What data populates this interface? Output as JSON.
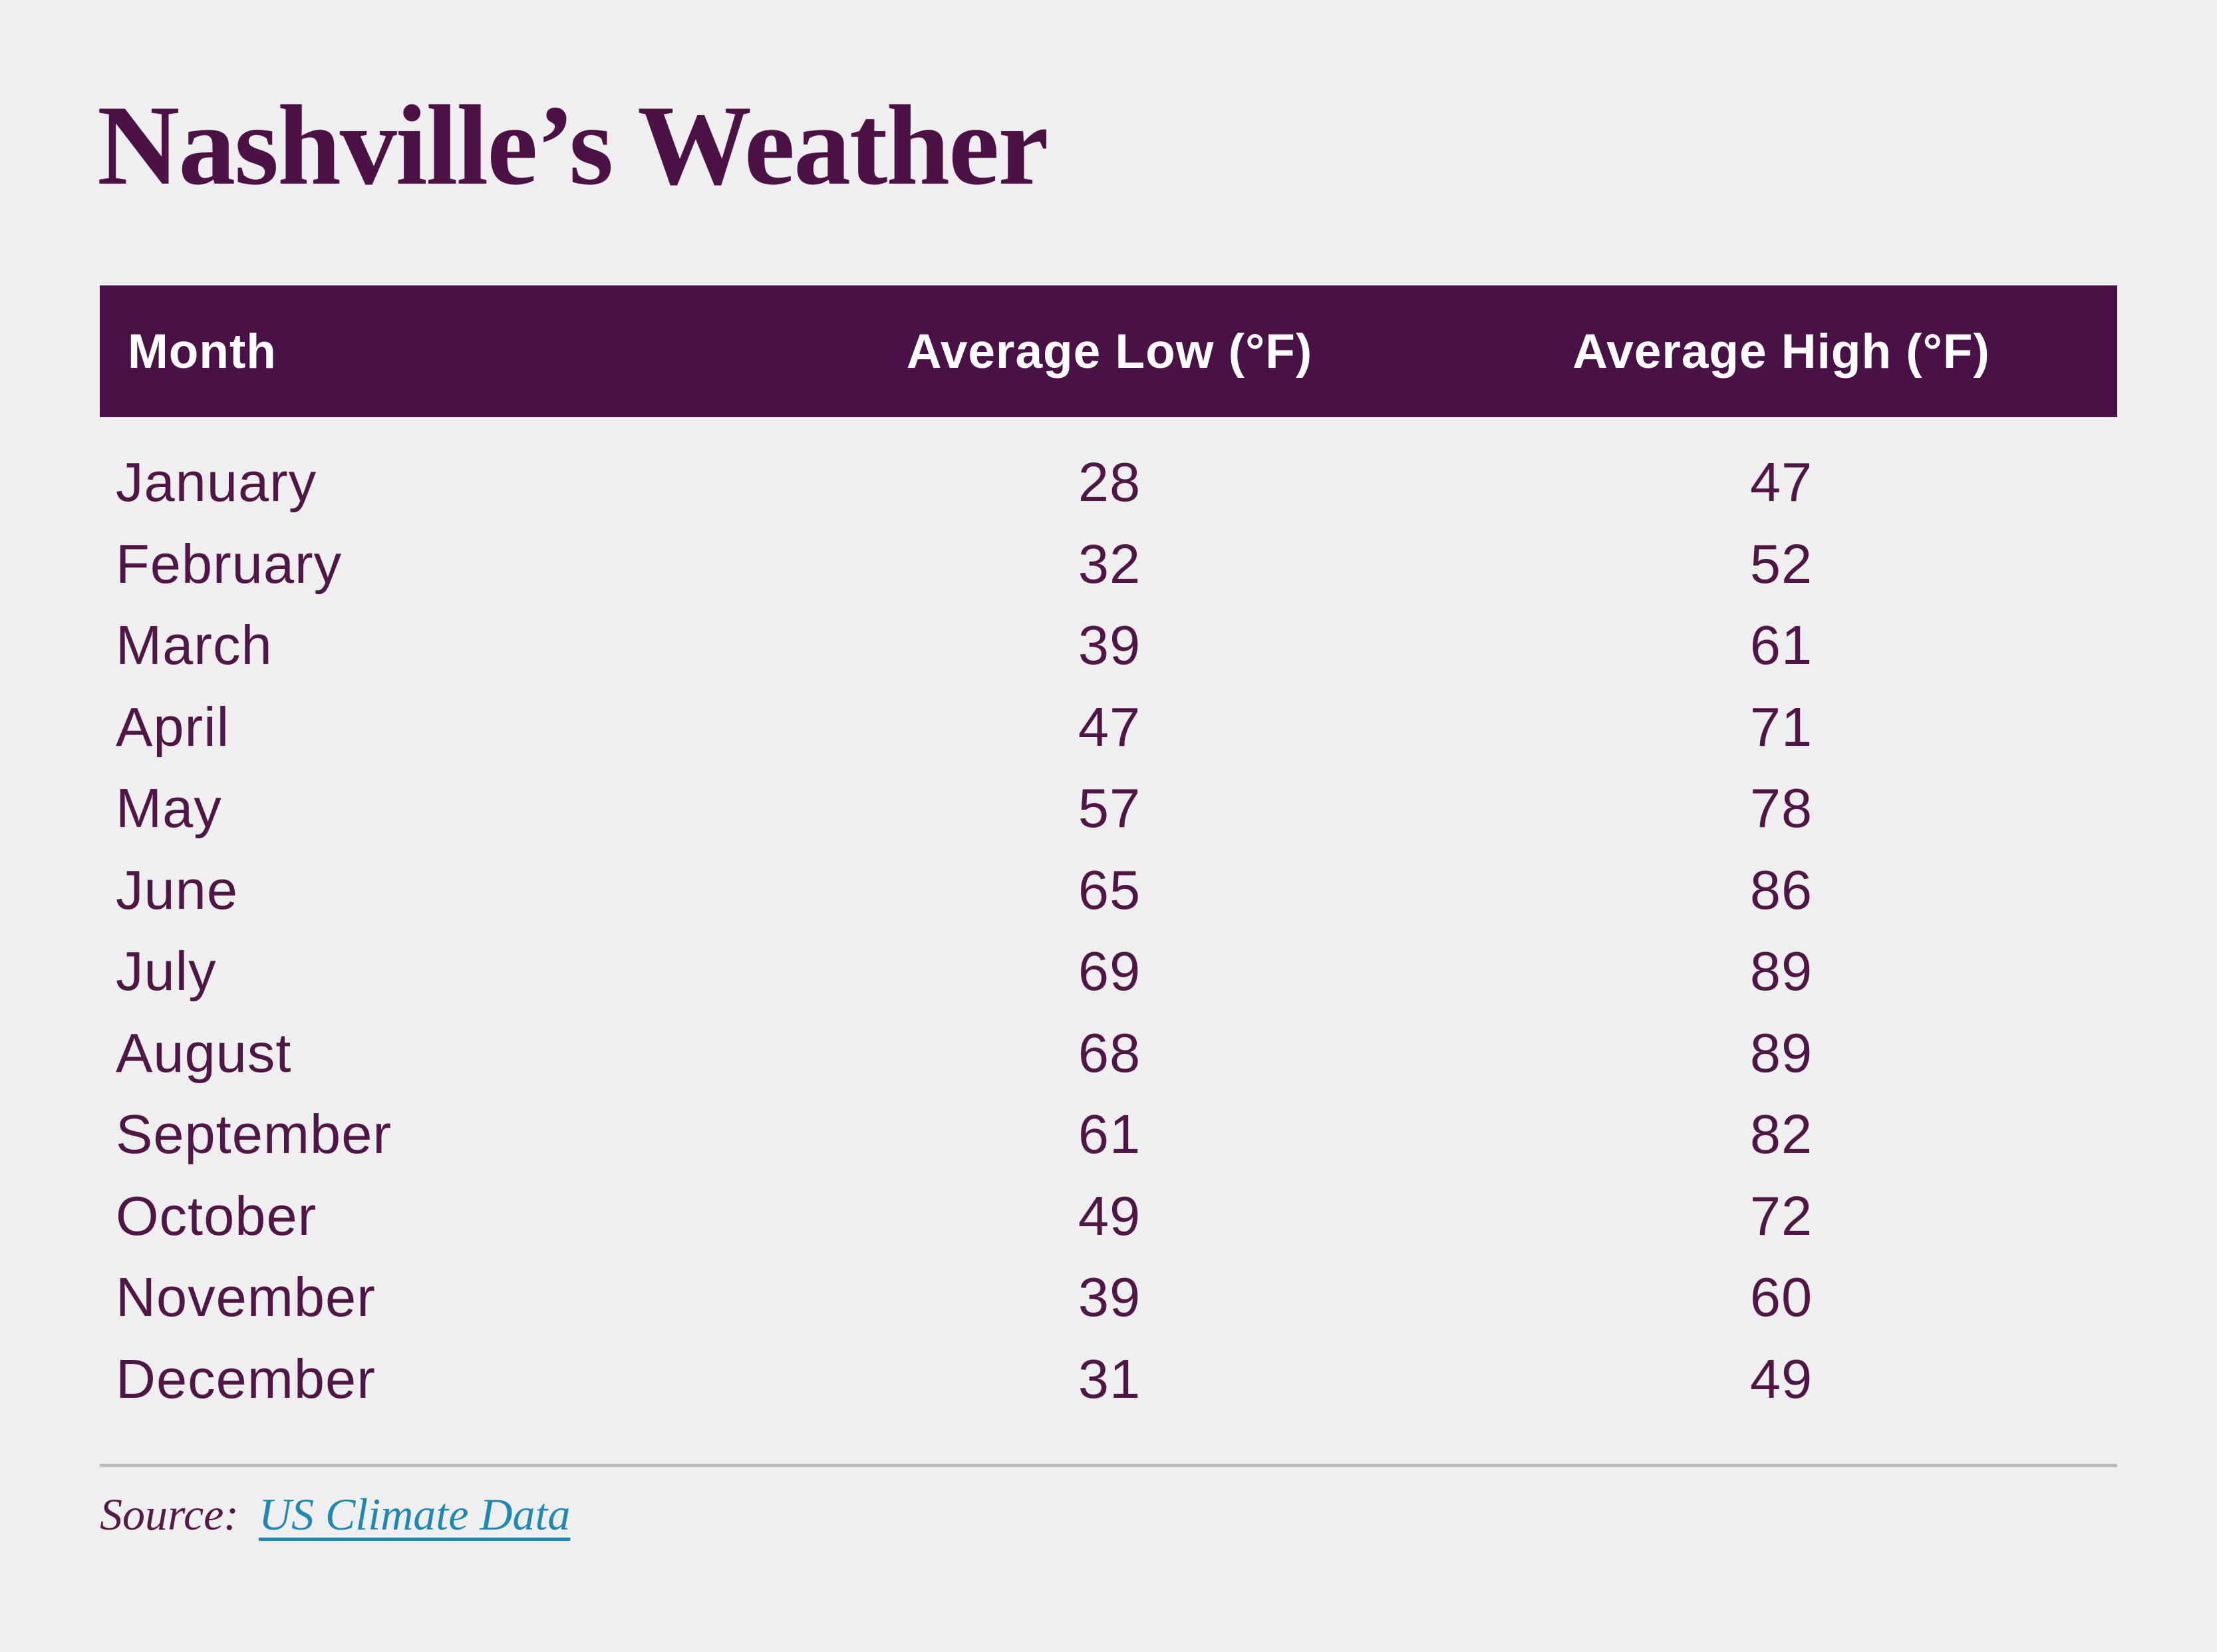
{
  "page": {
    "title": "Nashville’s Weather"
  },
  "table": {
    "headers": {
      "month": "Month",
      "low": "Average Low (°F)",
      "high": "Average High (°F)"
    },
    "rows": [
      {
        "month": "January",
        "low": 28,
        "high": 47
      },
      {
        "month": "February",
        "low": 32,
        "high": 52
      },
      {
        "month": "March",
        "low": 39,
        "high": 61
      },
      {
        "month": "April",
        "low": 47,
        "high": 71
      },
      {
        "month": "May",
        "low": 57,
        "high": 78
      },
      {
        "month": "June",
        "low": 65,
        "high": 86
      },
      {
        "month": "July",
        "low": 69,
        "high": 89
      },
      {
        "month": "August",
        "low": 68,
        "high": 89
      },
      {
        "month": "September",
        "low": 61,
        "high": 82
      },
      {
        "month": "October",
        "low": 49,
        "high": 72
      },
      {
        "month": "November",
        "low": 39,
        "high": 60
      },
      {
        "month": "December",
        "low": 31,
        "high": 49
      }
    ]
  },
  "source": {
    "label": "Source:",
    "link_text": "US Climate Data"
  },
  "colors": {
    "background": "#f0efef",
    "header_bg": "#4a1147",
    "header_text": "#ffffff",
    "title_text": "#4c1245",
    "body_text": "#4f1646",
    "source_label": "#551a45",
    "link": "#2088b4",
    "divider": "#b9b9b9"
  },
  "chart_data": {
    "type": "table",
    "title": "Nashville’s Weather",
    "columns": [
      "Month",
      "Average Low (°F)",
      "Average High (°F)"
    ],
    "categories": [
      "January",
      "February",
      "March",
      "April",
      "May",
      "June",
      "July",
      "August",
      "September",
      "October",
      "November",
      "December"
    ],
    "series": [
      {
        "name": "Average Low (°F)",
        "values": [
          28,
          32,
          39,
          47,
          57,
          65,
          69,
          68,
          61,
          49,
          39,
          31
        ]
      },
      {
        "name": "Average High (°F)",
        "values": [
          47,
          52,
          61,
          71,
          78,
          86,
          89,
          89,
          82,
          72,
          60,
          49
        ]
      }
    ],
    "source": "US Climate Data",
    "legend_position": "none",
    "grid": false
  }
}
